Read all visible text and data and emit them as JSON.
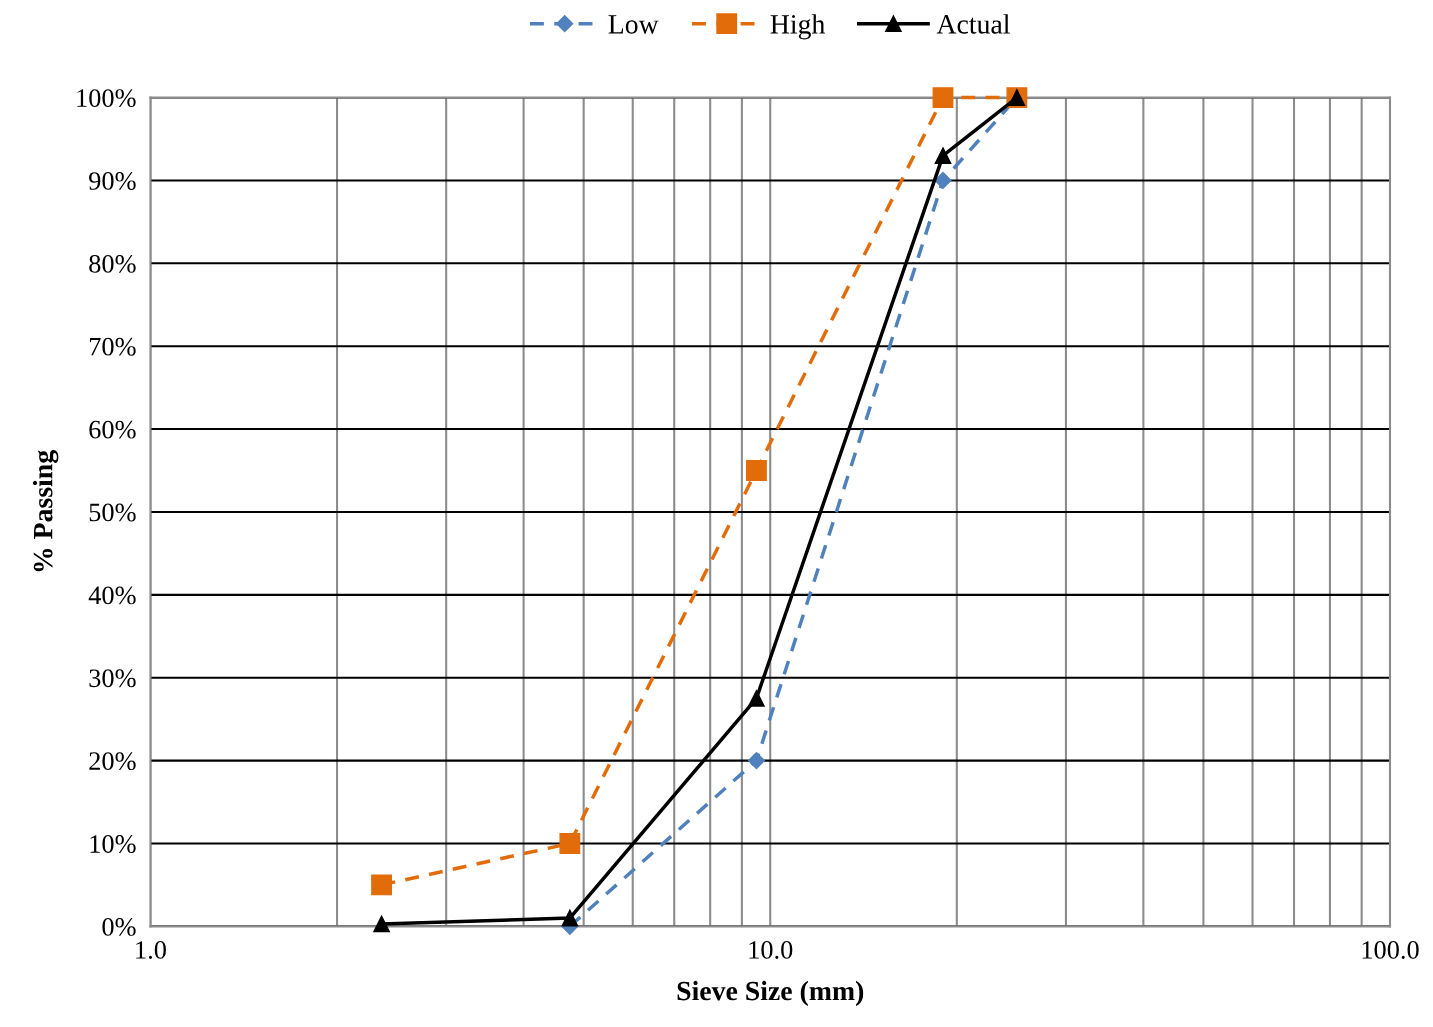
{
  "chart_data": {
    "type": "line",
    "xlabel": "Sieve Size (mm)",
    "ylabel": "% Passing",
    "log": "x",
    "grid": true,
    "legend": "top",
    "xlim": [
      1,
      100
    ],
    "xticks": [
      {
        "value": 1,
        "label": "1.0"
      },
      {
        "value": 10,
        "label": "10.0"
      },
      {
        "value": 100,
        "label": "100.0"
      }
    ],
    "ylim": [
      0,
      100
    ],
    "yticks": [
      {
        "value": 0,
        "label": "0%"
      },
      {
        "value": 10,
        "label": "10%"
      },
      {
        "value": 20,
        "label": "20%"
      },
      {
        "value": 30,
        "label": "30%"
      },
      {
        "value": 40,
        "label": "40%"
      },
      {
        "value": 50,
        "label": "50%"
      },
      {
        "value": 60,
        "label": "60%"
      },
      {
        "value": 70,
        "label": "70%"
      },
      {
        "value": 80,
        "label": "80%"
      },
      {
        "value": 90,
        "label": "90%"
      },
      {
        "value": 100,
        "label": "100%"
      }
    ],
    "series": [
      {
        "name": "Low",
        "color": "#4f81bd",
        "marker": "diamond",
        "line_style": "dashed",
        "x": [
          4.75,
          9.5,
          19,
          25
        ],
        "values": [
          0,
          20,
          90,
          100
        ]
      },
      {
        "name": "High",
        "color": "#e36c0a",
        "marker": "square",
        "line_style": "dashed",
        "x": [
          2.36,
          4.75,
          9.5,
          19,
          25
        ],
        "values": [
          5,
          10,
          55,
          100,
          100
        ]
      },
      {
        "name": "Actual",
        "color": "#000000",
        "marker": "triangle",
        "line_style": "solid",
        "x": [
          2.36,
          4.75,
          9.5,
          19,
          25
        ],
        "values": [
          0.3,
          1,
          27.5,
          93,
          100
        ]
      }
    ]
  }
}
